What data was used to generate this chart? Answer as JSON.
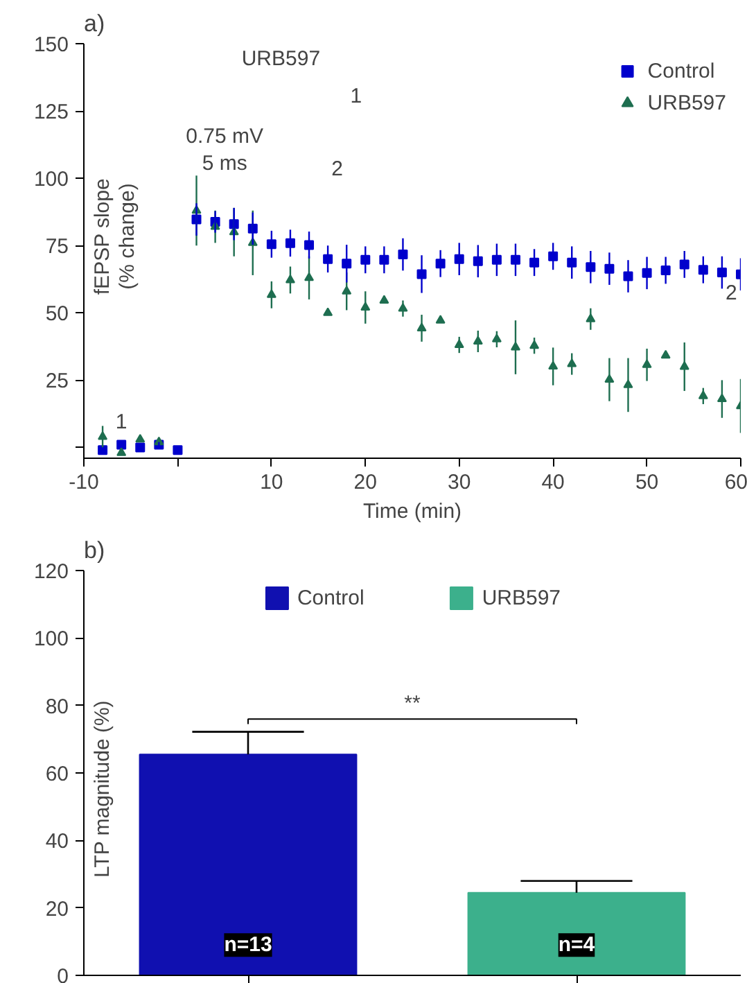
{
  "chart_data": [
    {
      "type": "scatter",
      "title": "a)",
      "xlabel": "Time (min)",
      "ylabel": "fEPSP slope\n(% change)",
      "x": [
        -8,
        -6,
        -4,
        -2,
        0,
        2,
        4,
        6,
        8,
        10,
        12,
        14,
        16,
        18,
        20,
        22,
        24,
        26,
        28,
        30,
        32,
        34,
        36,
        38,
        40,
        42,
        44,
        46,
        48,
        50,
        52,
        54,
        56,
        58,
        60
      ],
      "series": [
        {
          "name": "Control",
          "color": "#0000cc",
          "marker": "square",
          "values": [
            -1,
            1,
            0,
            1,
            -1,
            84.7,
            83.8,
            83,
            81.3,
            75.5,
            75.9,
            75.2,
            70,
            68.3,
            69.7,
            69.7,
            71.7,
            64.4,
            68.3,
            70,
            69.2,
            69.7,
            69.7,
            68.7,
            71,
            68.7,
            67,
            66.4,
            63.6,
            64.8,
            65.8,
            68,
            66,
            65,
            64.3
          ],
          "errors": [
            1,
            1,
            1,
            1,
            1,
            6,
            4,
            6,
            6,
            5,
            5,
            5,
            5,
            7,
            5,
            5,
            6,
            7,
            5,
            6,
            6,
            6,
            6,
            5,
            5,
            6,
            6,
            6,
            6,
            6,
            5,
            5,
            5,
            6,
            6
          ]
        },
        {
          "name": "URB597",
          "color": "#1e6e50",
          "marker": "triangle",
          "x": [
            -8,
            -6,
            -4,
            -2,
            2,
            4,
            6,
            8,
            10,
            12,
            14,
            16,
            18,
            20,
            22,
            24,
            26,
            28,
            30,
            32,
            34,
            36,
            38,
            40,
            42,
            44,
            46,
            48,
            50,
            52,
            54,
            56,
            58,
            60
          ],
          "values": [
            4,
            -2,
            3,
            2,
            88,
            82,
            80,
            76,
            56.7,
            62.2,
            63,
            50,
            58,
            52,
            54.6,
            51.6,
            44.3,
            47.2,
            38.1,
            39.4,
            40.2,
            37.2,
            37.8,
            30.1,
            31,
            47.7,
            25.2,
            23.2,
            30.7,
            34.2,
            30,
            19.1,
            18,
            15.4
          ],
          "errors": [
            4,
            null,
            null,
            null,
            13,
            6,
            9,
            12,
            5,
            5,
            8,
            null,
            7,
            6,
            null,
            3,
            5,
            null,
            3,
            4,
            3,
            10,
            3,
            7,
            4,
            4,
            8,
            10,
            6,
            null,
            9,
            3,
            7,
            10
          ]
        }
      ],
      "xlim": [
        -10,
        60
      ],
      "ylim": [
        -4,
        150
      ],
      "xticks": [
        -10,
        {
          "value": 0,
          "label": null
        },
        10,
        20,
        30,
        40,
        50,
        60
      ],
      "yticks": [
        {
          "value": 0,
          "label": null
        },
        25,
        50,
        75,
        100,
        125,
        150
      ],
      "grid": false,
      "legend": "top right",
      "annotations": [
        "1",
        "2",
        "URB597",
        "0.75 mV",
        "5 ms",
        "1",
        "2"
      ]
    },
    {
      "type": "bar",
      "title": "b)",
      "ylabel": "LTP magnitude (%)",
      "categories": [
        null,
        null
      ],
      "series": [
        {
          "name": "Control",
          "color": "#1010b0",
          "values": [
            65.5,
            null
          ],
          "errors": [
            [
              65.5,
              72.2
            ],
            null
          ]
        },
        {
          "name": "URB597",
          "color": "#3cb08c",
          "values": [
            null,
            24.5
          ],
          "errors": [
            null,
            [
              24.5,
              28
            ]
          ]
        }
      ],
      "ylim": [
        0,
        120
      ],
      "yticks": [
        0,
        20,
        40,
        60,
        80,
        100,
        120
      ],
      "grid": false,
      "legend": "top",
      "annotations": [
        "n=13",
        "n=4",
        "**"
      ]
    }
  ]
}
